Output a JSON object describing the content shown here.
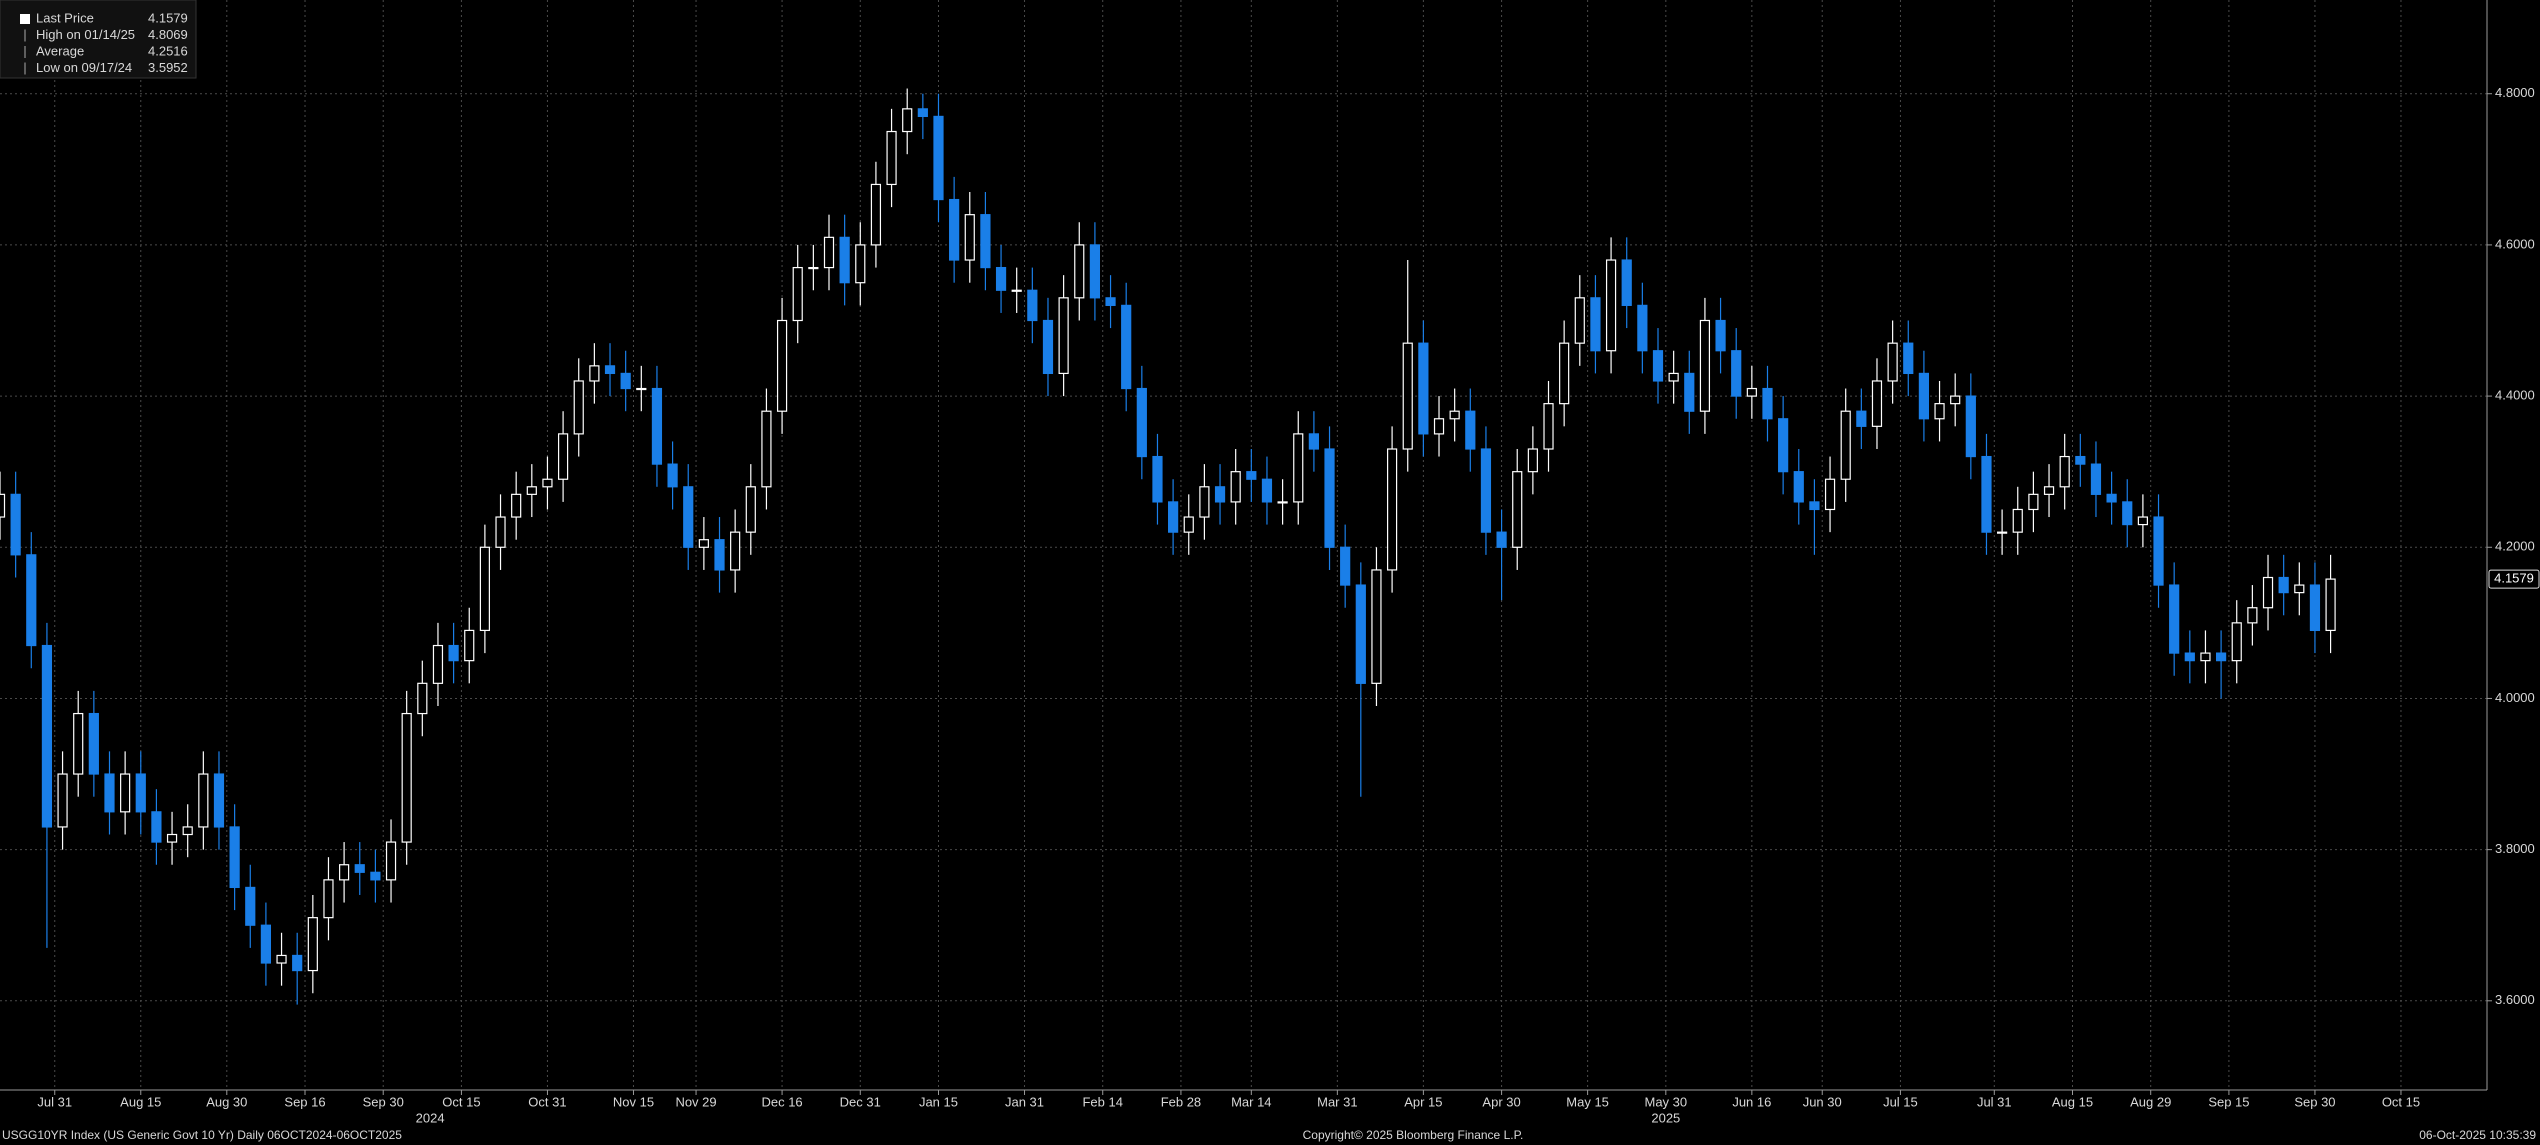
{
  "chart_data": {
    "type": "candlestick",
    "stats": [
      {
        "label": "Last Price",
        "value": 4.1579
      },
      {
        "label": "High on 01/14/25",
        "value": 4.8069
      },
      {
        "label": "Average",
        "value": 4.2516
      },
      {
        "label": "Low on 09/17/24",
        "value": 3.5952
      }
    ],
    "footer": {
      "left": "USGG10YR Index (US Generic Govt 10 Yr) Daily 06OCT2024-06OCT2025",
      "center": "Copyright© 2025 Bloomberg Finance L.P.",
      "right": "06-Oct-2025 10:35:39"
    },
    "up_color": "#ffffff",
    "down_color": "#1a7fe8",
    "grid": true,
    "xlim": [
      0,
      318
    ],
    "ylim": [
      3.482,
      4.924
    ],
    "yticks": [
      {
        "value": 3.6,
        "label": "3.6000"
      },
      {
        "value": 3.8,
        "label": "3.8000"
      },
      {
        "value": 4.0,
        "label": "4.0000"
      },
      {
        "value": 4.2,
        "label": "4.2000"
      },
      {
        "value": 4.4,
        "label": "4.4000"
      },
      {
        "value": 4.6,
        "label": "4.6000"
      },
      {
        "value": 4.8,
        "label": "4.8000"
      }
    ],
    "xticks": [
      {
        "value": 7,
        "label": "Jul 31"
      },
      {
        "value": 18,
        "label": "Aug 15"
      },
      {
        "value": 29,
        "label": "Aug 30"
      },
      {
        "value": 39,
        "label": "Sep 16"
      },
      {
        "value": 49,
        "label": "Sep 30"
      },
      {
        "value": 59,
        "label": "Oct 15"
      },
      {
        "value": 70,
        "label": "Oct 31"
      },
      {
        "value": 81,
        "label": "Nov 15"
      },
      {
        "value": 89,
        "label": "Nov 29"
      },
      {
        "value": 100,
        "label": "Dec 16"
      },
      {
        "value": 110,
        "label": "Dec 31"
      },
      {
        "value": 120,
        "label": "Jan 15"
      },
      {
        "value": 131,
        "label": "Jan 31"
      },
      {
        "value": 141,
        "label": "Feb 14"
      },
      {
        "value": 151,
        "label": "Feb 28"
      },
      {
        "value": 160,
        "label": "Mar 14"
      },
      {
        "value": 171,
        "label": "Mar 31"
      },
      {
        "value": 182,
        "label": "Apr 15"
      },
      {
        "value": 192,
        "label": "Apr 30"
      },
      {
        "value": 203,
        "label": "May 15"
      },
      {
        "value": 213,
        "label": "May 30"
      },
      {
        "value": 224,
        "label": "Jun 16"
      },
      {
        "value": 233,
        "label": "Jun 30"
      },
      {
        "value": 243,
        "label": "Jul 15"
      },
      {
        "value": 255,
        "label": "Jul 31"
      },
      {
        "value": 265,
        "label": "Aug 15"
      },
      {
        "value": 275,
        "label": "Aug 29"
      },
      {
        "value": 285,
        "label": "Sep 15"
      },
      {
        "value": 296,
        "label": "Sep 30"
      },
      {
        "value": 307,
        "label": "Oct 15"
      }
    ],
    "year_labels": [
      {
        "value": 55,
        "label": "2024"
      },
      {
        "value": 213,
        "label": "2025"
      }
    ],
    "x": [
      0,
      2,
      4,
      6,
      8,
      10,
      12,
      14,
      16,
      18,
      20,
      22,
      24,
      26,
      28,
      30,
      32,
      34,
      36,
      38,
      40,
      42,
      44,
      46,
      48,
      50,
      52,
      54,
      56,
      58,
      60,
      62,
      64,
      66,
      68,
      70,
      72,
      74,
      76,
      78,
      80,
      82,
      84,
      86,
      88,
      90,
      92,
      94,
      96,
      98,
      100,
      102,
      104,
      106,
      108,
      110,
      112,
      114,
      116,
      118,
      120,
      122,
      124,
      126,
      128,
      130,
      132,
      134,
      136,
      138,
      140,
      142,
      144,
      146,
      148,
      150,
      152,
      154,
      156,
      158,
      160,
      162,
      164,
      166,
      168,
      170,
      172,
      174,
      176,
      178,
      180,
      182,
      184,
      186,
      188,
      190,
      192,
      194,
      196,
      198,
      200,
      202,
      204,
      206,
      208,
      210,
      212,
      214,
      216,
      218,
      220,
      222,
      224,
      226,
      228,
      230,
      232,
      234,
      236,
      238,
      240,
      242,
      244,
      246,
      248,
      250,
      252,
      254,
      256,
      258,
      260,
      262,
      264,
      266,
      268,
      270,
      272,
      274,
      276,
      278,
      280,
      282,
      284,
      286,
      288,
      290,
      292,
      294,
      296,
      298
    ],
    "open": [
      4.24,
      4.27,
      4.19,
      4.07,
      3.83,
      3.9,
      3.98,
      3.9,
      3.85,
      3.9,
      3.85,
      3.81,
      3.82,
      3.83,
      3.9,
      3.83,
      3.75,
      3.7,
      3.65,
      3.66,
      3.64,
      3.71,
      3.76,
      3.78,
      3.77,
      3.76,
      3.81,
      3.98,
      4.02,
      4.07,
      4.05,
      4.09,
      4.2,
      4.24,
      4.27,
      4.28,
      4.29,
      4.35,
      4.42,
      4.44,
      4.43,
      4.41,
      4.41,
      4.31,
      4.28,
      4.2,
      4.21,
      4.17,
      4.22,
      4.28,
      4.38,
      4.5,
      4.57,
      4.57,
      4.61,
      4.55,
      4.6,
      4.68,
      4.75,
      4.78,
      4.77,
      4.66,
      4.58,
      4.64,
      4.57,
      4.54,
      4.54,
      4.5,
      4.43,
      4.53,
      4.6,
      4.53,
      4.52,
      4.41,
      4.32,
      4.26,
      4.22,
      4.24,
      4.28,
      4.26,
      4.3,
      4.29,
      4.26,
      4.26,
      4.35,
      4.33,
      4.2,
      4.15,
      4.02,
      4.17,
      4.33,
      4.47,
      4.35,
      4.37,
      4.38,
      4.33,
      4.22,
      4.2,
      4.3,
      4.33,
      4.39,
      4.47,
      4.53,
      4.46,
      4.58,
      4.52,
      4.46,
      4.42,
      4.43,
      4.38,
      4.5,
      4.46,
      4.4,
      4.41,
      4.37,
      4.3,
      4.26,
      4.25,
      4.29,
      4.38,
      4.36,
      4.42,
      4.47,
      4.43,
      4.37,
      4.39,
      4.4,
      4.32,
      4.22,
      4.22,
      4.25,
      4.27,
      4.28,
      4.32,
      4.31,
      4.27,
      4.26,
      4.23,
      4.24,
      4.15,
      4.06,
      4.05,
      4.06,
      4.05,
      4.1,
      4.12,
      4.16,
      4.14,
      4.15,
      4.09
    ],
    "high": [
      4.3,
      4.3,
      4.22,
      4.1,
      3.93,
      4.01,
      4.01,
      3.93,
      3.93,
      3.93,
      3.88,
      3.85,
      3.86,
      3.93,
      3.93,
      3.86,
      3.78,
      3.73,
      3.69,
      3.69,
      3.74,
      3.79,
      3.81,
      3.81,
      3.8,
      3.84,
      4.01,
      4.05,
      4.1,
      4.1,
      4.12,
      4.23,
      4.27,
      4.3,
      4.31,
      4.32,
      4.38,
      4.45,
      4.47,
      4.47,
      4.46,
      4.44,
      4.44,
      4.34,
      4.31,
      4.24,
      4.24,
      4.25,
      4.31,
      4.41,
      4.53,
      4.6,
      4.6,
      4.64,
      4.64,
      4.63,
      4.71,
      4.78,
      4.8069,
      4.8,
      4.8,
      4.69,
      4.67,
      4.67,
      4.6,
      4.57,
      4.57,
      4.53,
      4.56,
      4.63,
      4.63,
      4.56,
      4.55,
      4.44,
      4.35,
      4.29,
      4.27,
      4.31,
      4.31,
      4.33,
      4.33,
      4.32,
      4.29,
      4.38,
      4.38,
      4.36,
      4.23,
      4.18,
      4.2,
      4.36,
      4.58,
      4.5,
      4.4,
      4.41,
      4.41,
      4.36,
      4.25,
      4.33,
      4.36,
      4.42,
      4.5,
      4.56,
      4.56,
      4.61,
      4.61,
      4.55,
      4.49,
      4.46,
      4.46,
      4.53,
      4.53,
      4.49,
      4.44,
      4.44,
      4.4,
      4.33,
      4.29,
      4.32,
      4.41,
      4.41,
      4.45,
      4.5,
      4.5,
      4.46,
      4.42,
      4.43,
      4.43,
      4.35,
      4.25,
      4.28,
      4.3,
      4.31,
      4.35,
      4.35,
      4.34,
      4.3,
      4.29,
      4.27,
      4.27,
      4.18,
      4.09,
      4.09,
      4.09,
      4.13,
      4.15,
      4.19,
      4.19,
      4.18,
      4.18,
      4.19
    ],
    "low": [
      4.21,
      4.16,
      4.04,
      3.67,
      3.8,
      3.87,
      3.87,
      3.82,
      3.82,
      3.82,
      3.78,
      3.78,
      3.79,
      3.8,
      3.8,
      3.72,
      3.67,
      3.62,
      3.62,
      3.595,
      3.61,
      3.68,
      3.73,
      3.74,
      3.73,
      3.73,
      3.78,
      3.95,
      3.99,
      4.02,
      4.02,
      4.06,
      4.17,
      4.21,
      4.24,
      4.25,
      4.26,
      4.32,
      4.39,
      4.4,
      4.38,
      4.38,
      4.28,
      4.25,
      4.17,
      4.17,
      4.14,
      4.14,
      4.19,
      4.25,
      4.35,
      4.47,
      4.54,
      4.54,
      4.52,
      4.52,
      4.57,
      4.65,
      4.72,
      4.74,
      4.63,
      4.55,
      4.55,
      4.54,
      4.51,
      4.51,
      4.47,
      4.4,
      4.4,
      4.5,
      4.5,
      4.49,
      4.38,
      4.29,
      4.23,
      4.19,
      4.19,
      4.21,
      4.23,
      4.23,
      4.26,
      4.23,
      4.23,
      4.23,
      4.3,
      4.17,
      4.12,
      3.87,
      3.99,
      4.14,
      4.3,
      4.32,
      4.32,
      4.34,
      4.3,
      4.19,
      4.13,
      4.17,
      4.27,
      4.3,
      4.36,
      4.44,
      4.43,
      4.43,
      4.49,
      4.43,
      4.39,
      4.39,
      4.35,
      4.35,
      4.43,
      4.37,
      4.37,
      4.34,
      4.27,
      4.23,
      4.19,
      4.22,
      4.26,
      4.33,
      4.33,
      4.39,
      4.4,
      4.34,
      4.34,
      4.36,
      4.29,
      4.19,
      4.19,
      4.19,
      4.22,
      4.24,
      4.25,
      4.28,
      4.24,
      4.23,
      4.2,
      4.2,
      4.12,
      4.03,
      4.02,
      4.02,
      4.0,
      4.02,
      4.07,
      4.09,
      4.11,
      4.11,
      4.06,
      4.06
    ],
    "close": [
      4.27,
      4.19,
      4.07,
      3.83,
      3.9,
      3.98,
      3.9,
      3.85,
      3.9,
      3.85,
      3.81,
      3.82,
      3.83,
      3.9,
      3.83,
      3.75,
      3.7,
      3.65,
      3.66,
      3.64,
      3.71,
      3.76,
      3.78,
      3.77,
      3.76,
      3.81,
      3.98,
      4.02,
      4.07,
      4.05,
      4.09,
      4.2,
      4.24,
      4.27,
      4.28,
      4.29,
      4.35,
      4.42,
      4.44,
      4.43,
      4.41,
      4.41,
      4.31,
      4.28,
      4.2,
      4.21,
      4.17,
      4.22,
      4.28,
      4.38,
      4.5,
      4.57,
      4.57,
      4.61,
      4.55,
      4.6,
      4.68,
      4.75,
      4.78,
      4.77,
      4.66,
      4.58,
      4.64,
      4.57,
      4.54,
      4.54,
      4.5,
      4.43,
      4.53,
      4.6,
      4.53,
      4.52,
      4.41,
      4.32,
      4.26,
      4.22,
      4.24,
      4.28,
      4.26,
      4.3,
      4.29,
      4.26,
      4.26,
      4.35,
      4.33,
      4.2,
      4.15,
      4.02,
      4.17,
      4.33,
      4.47,
      4.35,
      4.37,
      4.38,
      4.33,
      4.22,
      4.2,
      4.3,
      4.33,
      4.39,
      4.47,
      4.53,
      4.46,
      4.58,
      4.52,
      4.46,
      4.42,
      4.43,
      4.38,
      4.5,
      4.46,
      4.4,
      4.41,
      4.37,
      4.3,
      4.26,
      4.25,
      4.29,
      4.38,
      4.36,
      4.42,
      4.47,
      4.43,
      4.37,
      4.39,
      4.4,
      4.32,
      4.22,
      4.22,
      4.25,
      4.27,
      4.28,
      4.32,
      4.31,
      4.27,
      4.26,
      4.23,
      4.24,
      4.15,
      4.06,
      4.05,
      4.06,
      4.05,
      4.1,
      4.12,
      4.16,
      4.14,
      4.15,
      4.09,
      4.1579
    ]
  }
}
